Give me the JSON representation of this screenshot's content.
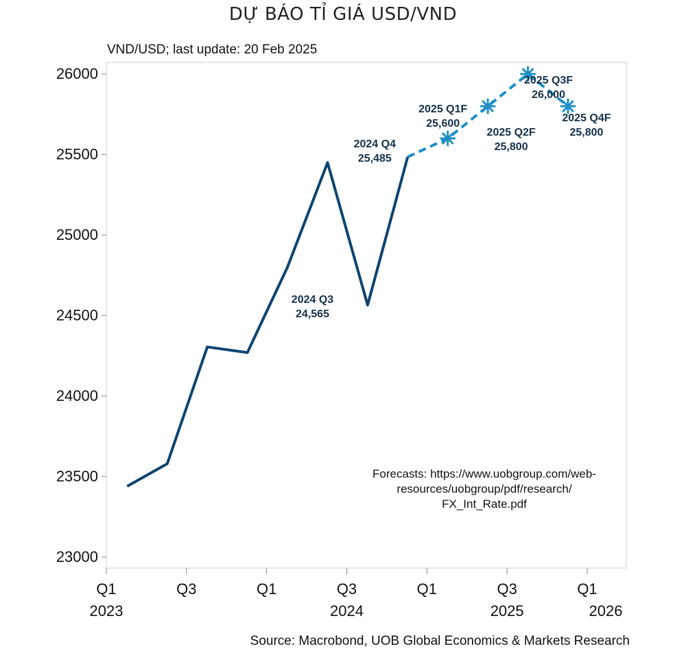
{
  "page_title": "DỰ BÁO TỈ GIÁ USD/VND",
  "chart_data": {
    "type": "line",
    "subtitle": "VND/USD; last update: 20 Feb 2025",
    "source": "Source: Macrobond, UOB Global Economics & Markets Research",
    "note_lines": [
      "Forecasts: https://www.uobgroup.com/web-",
      "resources/uobgroup/pdf/research/",
      "FX_Int_Rate.pdf"
    ],
    "ylim": [
      23000,
      26000
    ],
    "yticks": [
      23000,
      23500,
      24000,
      24500,
      25000,
      25500,
      26000
    ],
    "xlim": [
      2022.92,
      2026.25
    ],
    "xticks": [
      {
        "x": 2023.0,
        "quarter": "Q1",
        "year": "2023"
      },
      {
        "x": 2023.5,
        "quarter": "Q3",
        "year": ""
      },
      {
        "x": 2024.0,
        "quarter": "Q1",
        "year": ""
      },
      {
        "x": 2024.5,
        "quarter": "Q3",
        "year": "2024"
      },
      {
        "x": 2025.0,
        "quarter": "Q1",
        "year": ""
      },
      {
        "x": 2025.5,
        "quarter": "Q3",
        "year": "2025"
      },
      {
        "x": 2026.0,
        "quarter": "Q1",
        "year": "2026"
      }
    ],
    "series": [
      {
        "style": "solid",
        "color": "#0e4470",
        "points": [
          {
            "x": 2023.13,
            "y": 23440
          },
          {
            "x": 2023.38,
            "y": 23580
          },
          {
            "x": 2023.63,
            "y": 24305
          },
          {
            "x": 2023.88,
            "y": 24270
          },
          {
            "x": 2024.13,
            "y": 24800
          },
          {
            "x": 2024.38,
            "y": 25450
          },
          {
            "x": 2024.63,
            "y": 24565
          },
          {
            "x": 2024.88,
            "y": 25485
          }
        ]
      },
      {
        "style": "dashed",
        "color": "#1e8fc4",
        "points": [
          {
            "x": 2024.88,
            "y": 25485
          },
          {
            "x": 2025.13,
            "y": 25600
          },
          {
            "x": 2025.38,
            "y": 25800
          },
          {
            "x": 2025.63,
            "y": 26000
          },
          {
            "x": 2025.88,
            "y": 25800
          }
        ],
        "markers": [
          {
            "x": 2025.13,
            "y": 25600
          },
          {
            "x": 2025.38,
            "y": 25800
          },
          {
            "x": 2025.63,
            "y": 26000
          },
          {
            "x": 2025.88,
            "y": 25800
          }
        ]
      }
    ],
    "annotations": [
      {
        "x": 2024.5,
        "y": 24565,
        "lines": [
          "2024 Q3",
          "24,565"
        ],
        "dx": -50,
        "dy": -3
      },
      {
        "x": 2024.88,
        "y": 25485,
        "lines": [
          "2024 Q4",
          "25,485"
        ],
        "dx": -48,
        "dy": -14
      },
      {
        "x": 2025.13,
        "y": 25600,
        "lines": [
          "2025 Q1F",
          "25,600"
        ],
        "dx": -7,
        "dy": -38
      },
      {
        "x": 2025.38,
        "y": 25800,
        "lines": [
          "2025 Q2F",
          "25,800"
        ],
        "dx": 34,
        "dy": 43
      },
      {
        "x": 2025.63,
        "y": 26000,
        "lines": [
          "2025 Q3F",
          "26,000"
        ],
        "dx": 30,
        "dy": 14
      },
      {
        "x": 2025.88,
        "y": 25800,
        "lines": [
          "2025 Q4F",
          "25,800"
        ],
        "dx": 27,
        "dy": 22
      }
    ]
  }
}
